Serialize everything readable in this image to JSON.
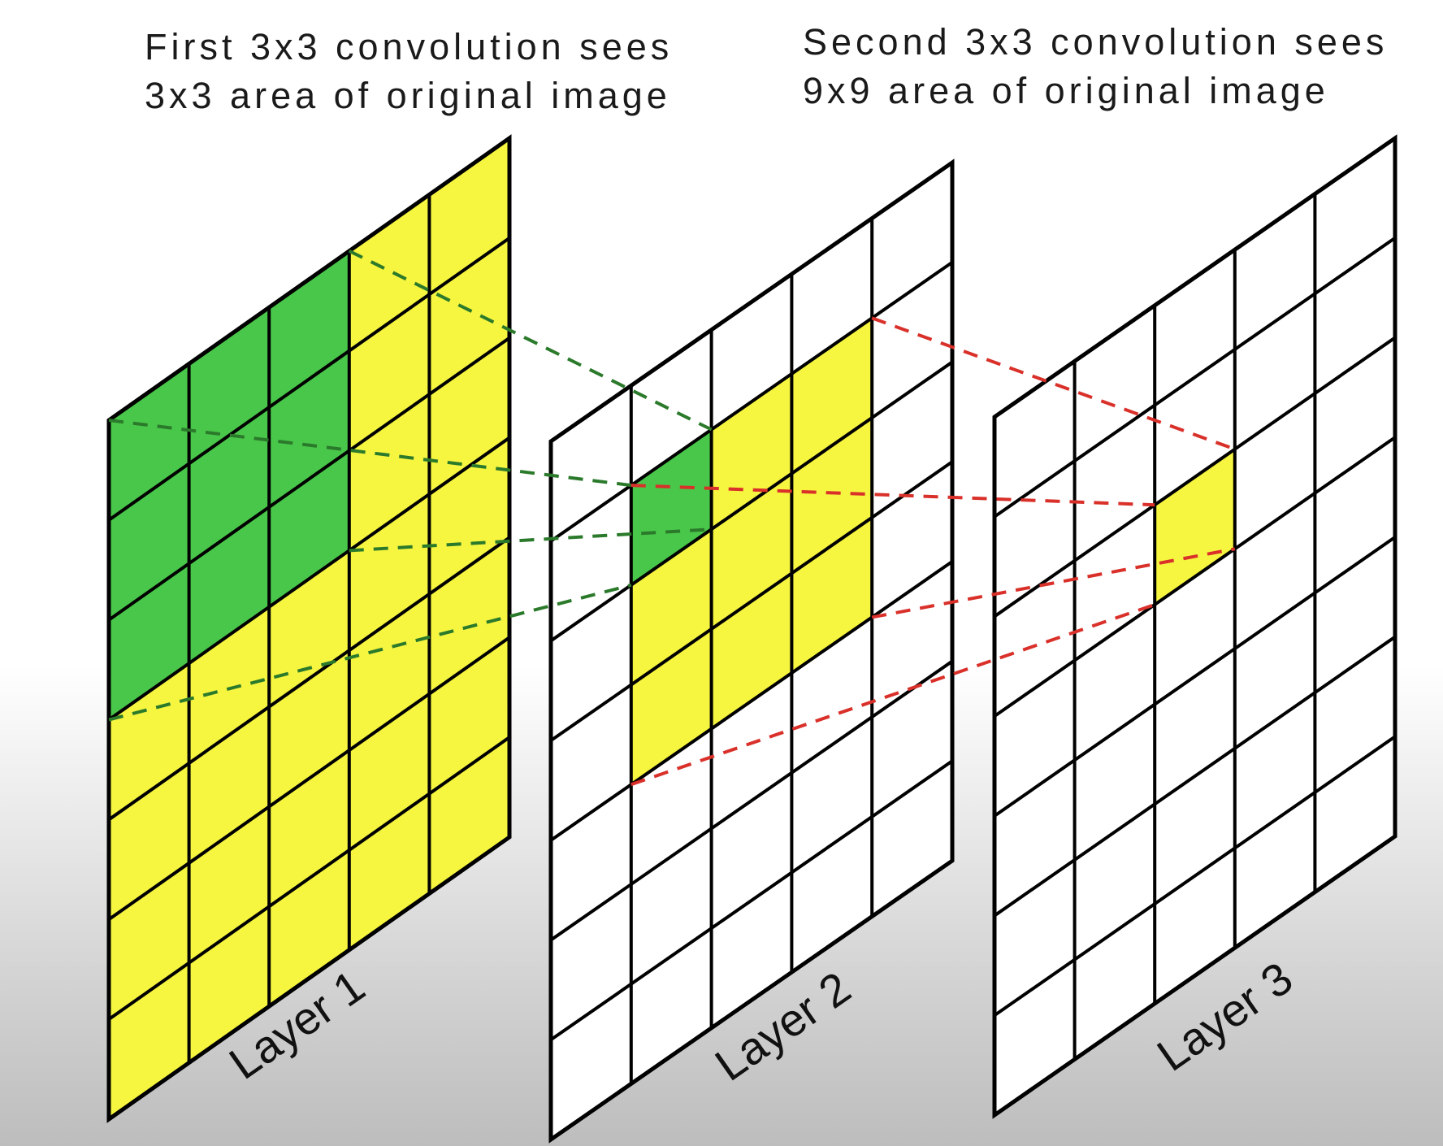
{
  "captions": {
    "first": {
      "line1": "First 3x3 convolution sees",
      "line2": "3x3 area of original image"
    },
    "second": {
      "line1": "Second 3x3 convolution sees",
      "line2": "9x9 area of original image"
    }
  },
  "layers": [
    {
      "name": "Layer 1",
      "label": "Layer 1"
    },
    {
      "name": "Layer 2",
      "label": "Layer 2"
    },
    {
      "name": "Layer 3",
      "label": "Layer 3"
    }
  ],
  "grid": {
    "columns": 5,
    "rows": 7
  },
  "highlight": {
    "layer1_yellow_region": "entire 5x7 grid except green block",
    "layer1_green_block": "3x3 cells in columns 1-3, rows 1-3",
    "layer2_yellow_region": "3x3 cells in columns 2-4, rows 2-4",
    "layer2_green_cell": "column 2, row 2",
    "layer3_yellow_cell": "column 3, row 3"
  },
  "colors": {
    "yellow": "#f6f540",
    "green": "#49c74a",
    "grid_line": "#000000",
    "green_dashes": "#2b7a2b",
    "red_dashes": "#d9302a",
    "background_top": "#ffffff",
    "background_bottom": "#bdbdbd"
  }
}
